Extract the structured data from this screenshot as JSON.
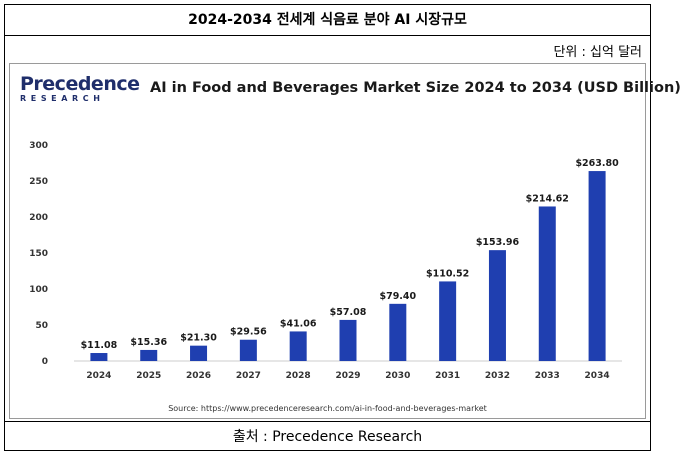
{
  "page": {
    "title": "2024-2034 전세계 식음료 분야 AI 시장규모",
    "unit": "단위 : 십억 달러",
    "source": "출처 : Precedence Research"
  },
  "logo": {
    "main": "Precedence",
    "sub": "RESEARCH"
  },
  "colors": {
    "bar": "#1f3fb0",
    "axis": "#cccccc",
    "text": "#1a1a1a"
  },
  "chart_data": {
    "type": "bar",
    "title": "AI in Food and Beverages Market Size 2024 to 2034 (USD Billion)",
    "categories": [
      "2024",
      "2025",
      "2026",
      "2027",
      "2028",
      "2029",
      "2030",
      "2031",
      "2032",
      "2033",
      "2034"
    ],
    "values": [
      11.08,
      15.36,
      21.3,
      29.56,
      41.06,
      57.08,
      79.4,
      110.52,
      153.96,
      214.62,
      263.8
    ],
    "labels": [
      "$11.08",
      "$15.36",
      "$21.30",
      "$29.56",
      "$41.06",
      "$57.08",
      "$79.40",
      "$110.52",
      "$153.96",
      "$214.62",
      "$263.80"
    ],
    "yticks": [
      "0",
      "50",
      "100",
      "150",
      "200",
      "250",
      "300"
    ],
    "ylim": [
      0,
      300
    ],
    "xlabel": "",
    "ylabel": "",
    "source_note": "Source: https://www.precedenceresearch.com/ai-in-food-and-beverages-market"
  }
}
